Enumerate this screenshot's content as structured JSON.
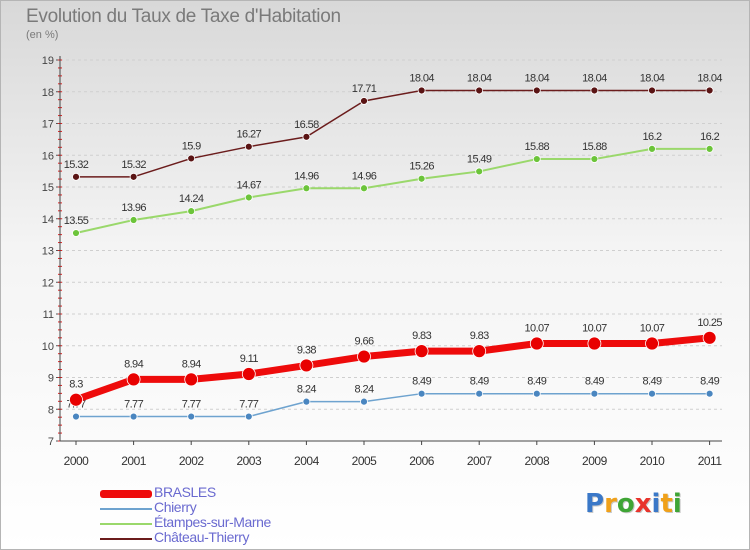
{
  "title": "Evolution du Taux de Taxe d'Habitation",
  "subtitle": "(en %)",
  "logo": {
    "text": "Proxiti",
    "letter_colors": [
      "#3a78c8",
      "#f0a11a",
      "#3fa535",
      "#e8342c",
      "#3a78c8",
      "#f0a11a",
      "#3fa535"
    ]
  },
  "chart_data": {
    "type": "line",
    "title": "Evolution du Taux de Taxe d'Habitation",
    "subtitle": "(en %)",
    "xlabel": "",
    "ylabel": "(en %)",
    "ylim": [
      7,
      19
    ],
    "yticks": [
      7,
      8,
      9,
      10,
      11,
      12,
      13,
      14,
      15,
      16,
      17,
      18,
      19
    ],
    "grid": "horizontal dashed",
    "legend_position": "bottom-left",
    "categories": [
      "2000",
      "2001",
      "2002",
      "2003",
      "2004",
      "2005",
      "2006",
      "2007",
      "2008",
      "2009",
      "2010",
      "2011"
    ],
    "series": [
      {
        "name": "Château-Thierry",
        "color": "#6b1c1c",
        "point_color": "#5a1414",
        "width": 1.5,
        "point_r": 3.5,
        "values": [
          15.32,
          15.32,
          15.9,
          16.27,
          16.58,
          17.71,
          18.04,
          18.04,
          18.04,
          18.04,
          18.04,
          18.04
        ],
        "labels": [
          "15.32",
          "15.32",
          "15.9",
          "16.27",
          "16.58",
          "17.71",
          "18.04",
          "18.04",
          "18.04",
          "18.04",
          "18.04",
          "18.04"
        ]
      },
      {
        "name": "Étampes-sur-Marne",
        "color": "#9ad86b",
        "point_color": "#6cc43a",
        "width": 2,
        "point_r": 3.5,
        "values": [
          13.55,
          13.96,
          14.24,
          14.67,
          14.96,
          14.96,
          15.26,
          15.49,
          15.88,
          15.88,
          16.2,
          16.2
        ],
        "labels": [
          "13.55",
          "13.96",
          "14.24",
          "14.67",
          "14.96",
          "14.96",
          "15.26",
          "15.49",
          "15.88",
          "15.88",
          "16.2",
          "16.2"
        ]
      },
      {
        "name": "Chierry",
        "color": "#6ea3cf",
        "point_color": "#4a86c0",
        "width": 1.5,
        "point_r": 3.5,
        "values": [
          7.77,
          7.77,
          7.77,
          7.77,
          8.24,
          8.24,
          8.49,
          8.49,
          8.49,
          8.49,
          8.49,
          8.49
        ],
        "labels": [
          "7.77",
          "7.77",
          "7.77",
          "7.77",
          "8.24",
          "8.24",
          "8.49",
          "8.49",
          "8.49",
          "8.49",
          "8.49",
          "8.49"
        ]
      },
      {
        "name": "BRASLES",
        "color": "#ee0b0b",
        "point_color": "#e80000",
        "width": 7,
        "point_r": 6.5,
        "values": [
          8.3,
          8.94,
          8.94,
          9.11,
          9.38,
          9.66,
          9.83,
          9.83,
          10.07,
          10.07,
          10.07,
          10.25
        ],
        "labels": [
          "8.3",
          "8.94",
          "8.94",
          "9.11",
          "9.38",
          "9.66",
          "9.83",
          "9.83",
          "10.07",
          "10.07",
          "10.07",
          "10.25"
        ]
      }
    ],
    "legend": [
      {
        "name": "BRASLES",
        "color": "#ee0b0b",
        "thickness": 8
      },
      {
        "name": "Chierry",
        "color": "#6ea3cf",
        "thickness": 2
      },
      {
        "name": "Étampes-sur-Marne",
        "color": "#9ad86b",
        "thickness": 2
      },
      {
        "name": "Château-Thierry",
        "color": "#6b1c1c",
        "thickness": 2
      }
    ]
  }
}
